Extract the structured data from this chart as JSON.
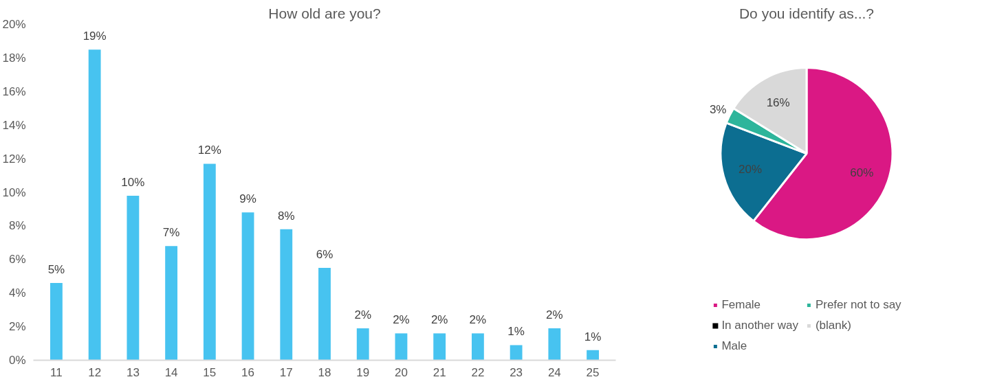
{
  "chart_data": [
    {
      "type": "bar",
      "title": "How old are you?",
      "categories": [
        "11",
        "12",
        "13",
        "14",
        "15",
        "16",
        "17",
        "18",
        "19",
        "20",
        "21",
        "22",
        "23",
        "24",
        "25"
      ],
      "values": [
        4.6,
        18.5,
        9.8,
        6.8,
        11.7,
        8.8,
        7.8,
        5.5,
        1.9,
        1.6,
        1.6,
        1.6,
        0.9,
        1.9,
        0.6
      ],
      "value_labels": [
        "5%",
        "19%",
        "10%",
        "7%",
        "12%",
        "9%",
        "8%",
        "6%",
        "2%",
        "2%",
        "2%",
        "2%",
        "1%",
        "2%",
        "1%"
      ],
      "color": "#47c3f0",
      "ylim": [
        0,
        20
      ],
      "yticks": [
        {
          "value": 0,
          "label": "0%"
        },
        {
          "value": 2,
          "label": "2%"
        },
        {
          "value": 4,
          "label": "4%"
        },
        {
          "value": 6,
          "label": "6%"
        },
        {
          "value": 8,
          "label": "8%"
        },
        {
          "value": 10,
          "label": "10%"
        },
        {
          "value": 12,
          "label": "12%"
        },
        {
          "value": 14,
          "label": "14%"
        },
        {
          "value": 16,
          "label": "16%"
        },
        {
          "value": 18,
          "label": "18%"
        },
        {
          "value": 20,
          "label": "20%"
        }
      ],
      "grid": false
    },
    {
      "type": "pie",
      "title": "Do you identify as...?",
      "categories": [
        "Female",
        "In another way",
        "Male",
        "Prefer not to say",
        "(blank)"
      ],
      "values": [
        60,
        0,
        20,
        3,
        16
      ],
      "value_labels": [
        "60%",
        null,
        "20%",
        "3%",
        "16%"
      ],
      "colors": [
        "#da1884",
        "#000000",
        "#0c6e91",
        "#2db59b",
        "#d9d9d9"
      ],
      "legend": "bottom"
    }
  ]
}
